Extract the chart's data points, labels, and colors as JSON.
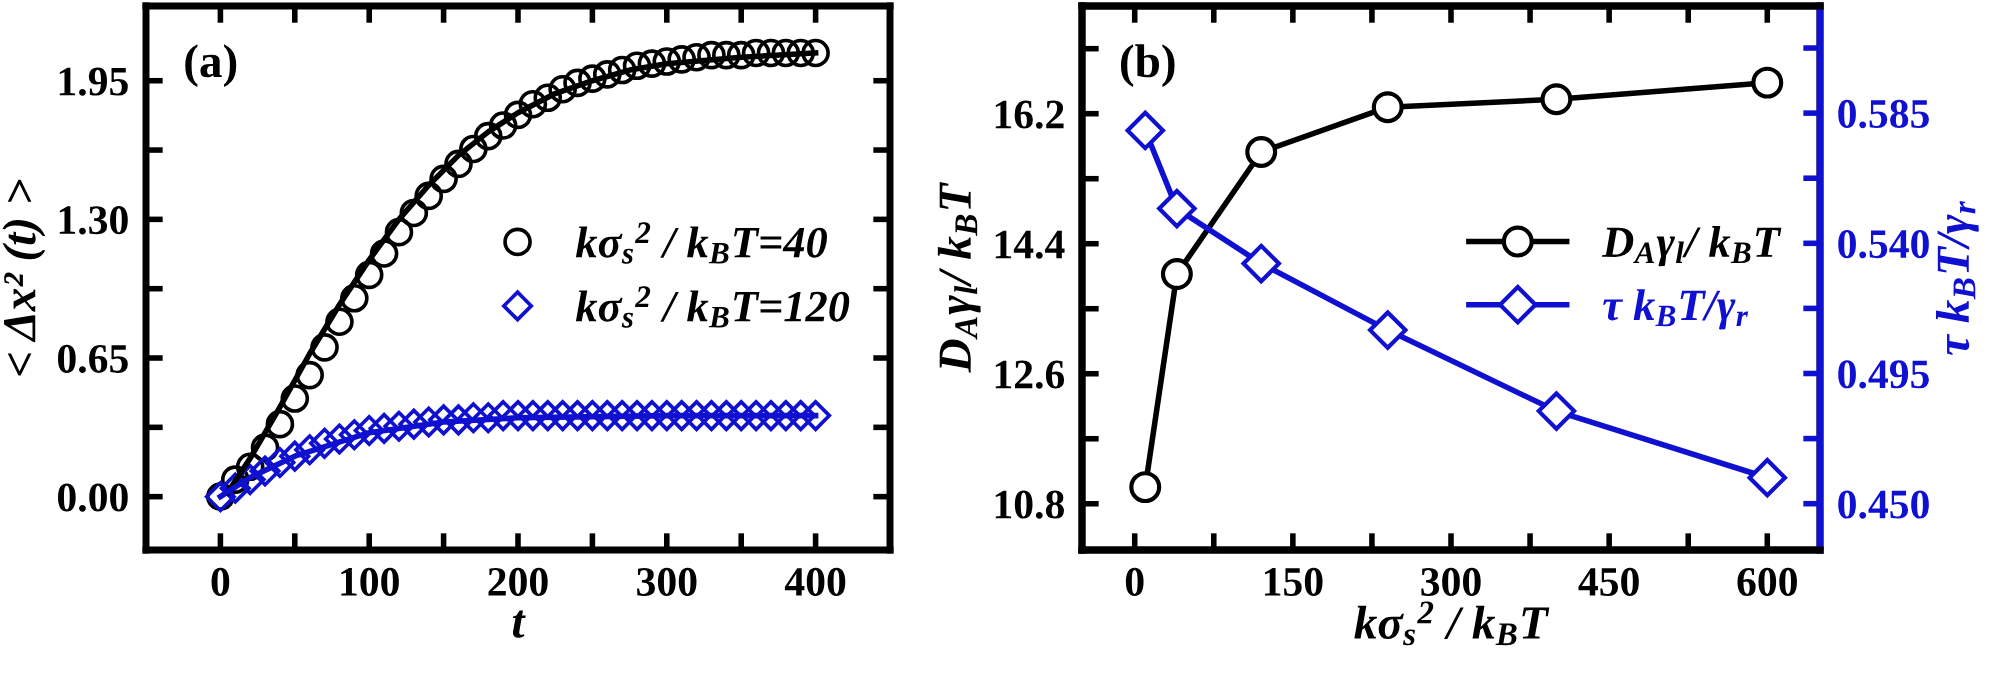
{
  "chart_data": [
    {
      "type": "scatter",
      "xlabel": "t",
      "ylabel": "< Δx² (t) >",
      "annotations": [
        "(a)"
      ],
      "legend": "center right",
      "xlim": [
        -50,
        450
      ],
      "ylim": [
        -0.25,
        2.3
      ],
      "xticks": [
        0,
        {
          "value": 50,
          "label": null
        },
        100,
        {
          "value": 150,
          "label": null
        },
        200,
        {
          "value": 250,
          "label": null
        },
        300,
        {
          "value": 350,
          "label": null
        },
        400
      ],
      "yticks": [
        {
          "value": 0,
          "label": "0.00"
        },
        {
          "value": 0.325,
          "label": null
        },
        0.65,
        {
          "value": 0.975,
          "label": null
        },
        {
          "value": 1.3,
          "label": "1.30"
        },
        {
          "value": 1.625,
          "label": null
        },
        1.95
      ],
      "series": [
        {
          "name": "kσ$_{s}$$^{2}$ / k$_{B}$T=40",
          "type": "scatter",
          "marker": "circle",
          "color": "#000000",
          "x": [
            0,
            10,
            20,
            30,
            40,
            50,
            60,
            70,
            80,
            90,
            100,
            110,
            120,
            130,
            140,
            150,
            160,
            170,
            180,
            190,
            200,
            210,
            220,
            230,
            240,
            250,
            260,
            270,
            280,
            290,
            300,
            310,
            320,
            330,
            340,
            350,
            360,
            370,
            380,
            390,
            400
          ],
          "values": [
            0,
            0.08,
            0.14,
            0.23,
            0.34,
            0.46,
            0.57,
            0.7,
            0.82,
            0.93,
            1.04,
            1.14,
            1.24,
            1.33,
            1.41,
            1.49,
            1.56,
            1.63,
            1.69,
            1.74,
            1.79,
            1.84,
            1.87,
            1.91,
            1.94,
            1.96,
            1.98,
            2.0,
            2.02,
            2.03,
            2.04,
            2.05,
            2.06,
            2.07,
            2.07,
            2.07,
            2.08,
            2.08,
            2.08,
            2.08,
            2.08
          ]
        },
        {
          "name": "kσ$_{s}$$^{2}$ / k$_{B}$T=120",
          "type": "scatter",
          "marker": "diamond",
          "color": "#1010d0",
          "x": [
            0,
            10,
            20,
            30,
            40,
            50,
            60,
            70,
            80,
            90,
            100,
            110,
            120,
            130,
            140,
            150,
            160,
            170,
            180,
            190,
            200,
            210,
            220,
            230,
            240,
            250,
            260,
            270,
            280,
            290,
            300,
            310,
            320,
            330,
            340,
            350,
            360,
            370,
            380,
            390,
            400
          ],
          "values": [
            0,
            0.04,
            0.08,
            0.12,
            0.16,
            0.19,
            0.22,
            0.25,
            0.27,
            0.29,
            0.31,
            0.32,
            0.33,
            0.34,
            0.35,
            0.36,
            0.36,
            0.37,
            0.37,
            0.38,
            0.38,
            0.38,
            0.38,
            0.38,
            0.38,
            0.38,
            0.38,
            0.38,
            0.38,
            0.38,
            0.38,
            0.38,
            0.38,
            0.38,
            0.38,
            0.38,
            0.38,
            0.38,
            0.38,
            0.38,
            0.38
          ]
        },
        {
          "type": "line",
          "color": "#000000",
          "x": [
            5,
            20,
            40,
            60,
            80,
            100,
            120,
            140,
            160,
            180,
            200,
            225,
            250,
            275,
            300,
            350,
            400
          ],
          "values": [
            0.02,
            0.18,
            0.42,
            0.67,
            0.9,
            1.11,
            1.3,
            1.46,
            1.6,
            1.71,
            1.8,
            1.89,
            1.95,
            2.0,
            2.03,
            2.06,
            2.08
          ]
        },
        {
          "type": "line",
          "color": "#1010d0",
          "x": [
            0,
            20,
            50,
            100,
            150,
            200,
            300,
            400
          ],
          "values": [
            0,
            0.09,
            0.19,
            0.3,
            0.35,
            0.37,
            0.38,
            0.38
          ]
        }
      ]
    },
    {
      "type": "line",
      "xlabel": "kσ$_{s}$$^{2}$ / k$_{B}$T",
      "ylabel": "D$_{A}$γ$_{l}$/ k$_{B}$T",
      "y2label": "τ k$_{B}$T/γ$_{r}$",
      "annotations": [
        "(b)"
      ],
      "legend": "center right",
      "xlim": [
        -50,
        650
      ],
      "ylim": [
        10.16,
        17.69
      ],
      "y2lim": [
        0.434,
        0.622
      ],
      "xticks": [
        0,
        {
          "value": 75,
          "label": null
        },
        150,
        {
          "value": 225,
          "label": null
        },
        300,
        {
          "value": 375,
          "label": null
        },
        450,
        {
          "value": 525,
          "label": null
        },
        600
      ],
      "yticks": [
        10.8,
        {
          "value": 11.7,
          "label": null
        },
        12.6,
        {
          "value": 13.5,
          "label": null
        },
        14.4,
        {
          "value": 15.3,
          "label": null
        },
        16.2,
        {
          "value": 17.1,
          "label": null
        }
      ],
      "y2ticks": [
        {
          "value": 0.45,
          "label": "0.450"
        },
        {
          "value": 0.4725,
          "label": null
        },
        0.495,
        {
          "value": 0.5175,
          "label": null
        },
        {
          "value": 0.54,
          "label": "0.540"
        },
        {
          "value": 0.5625,
          "label": null
        },
        0.585,
        {
          "value": 0.6075,
          "label": null
        }
      ],
      "x": [
        10,
        40,
        120,
        240,
        400,
        600
      ],
      "series": [
        {
          "name": "D$_{A}$γ$_{l}$/ k$_{B}$T",
          "marker": "circle",
          "color": "#000000",
          "values": [
            11.03,
            13.98,
            15.67,
            16.29,
            16.4,
            16.63
          ]
        },
        {
          "name": "τ k$_{B}$T/γ$_{r}$",
          "marker": "diamond",
          "color": "#1010d0",
          "axis": "y2",
          "values": [
            0.579,
            0.552,
            0.533,
            0.51,
            0.482,
            0.459
          ]
        }
      ]
    }
  ]
}
